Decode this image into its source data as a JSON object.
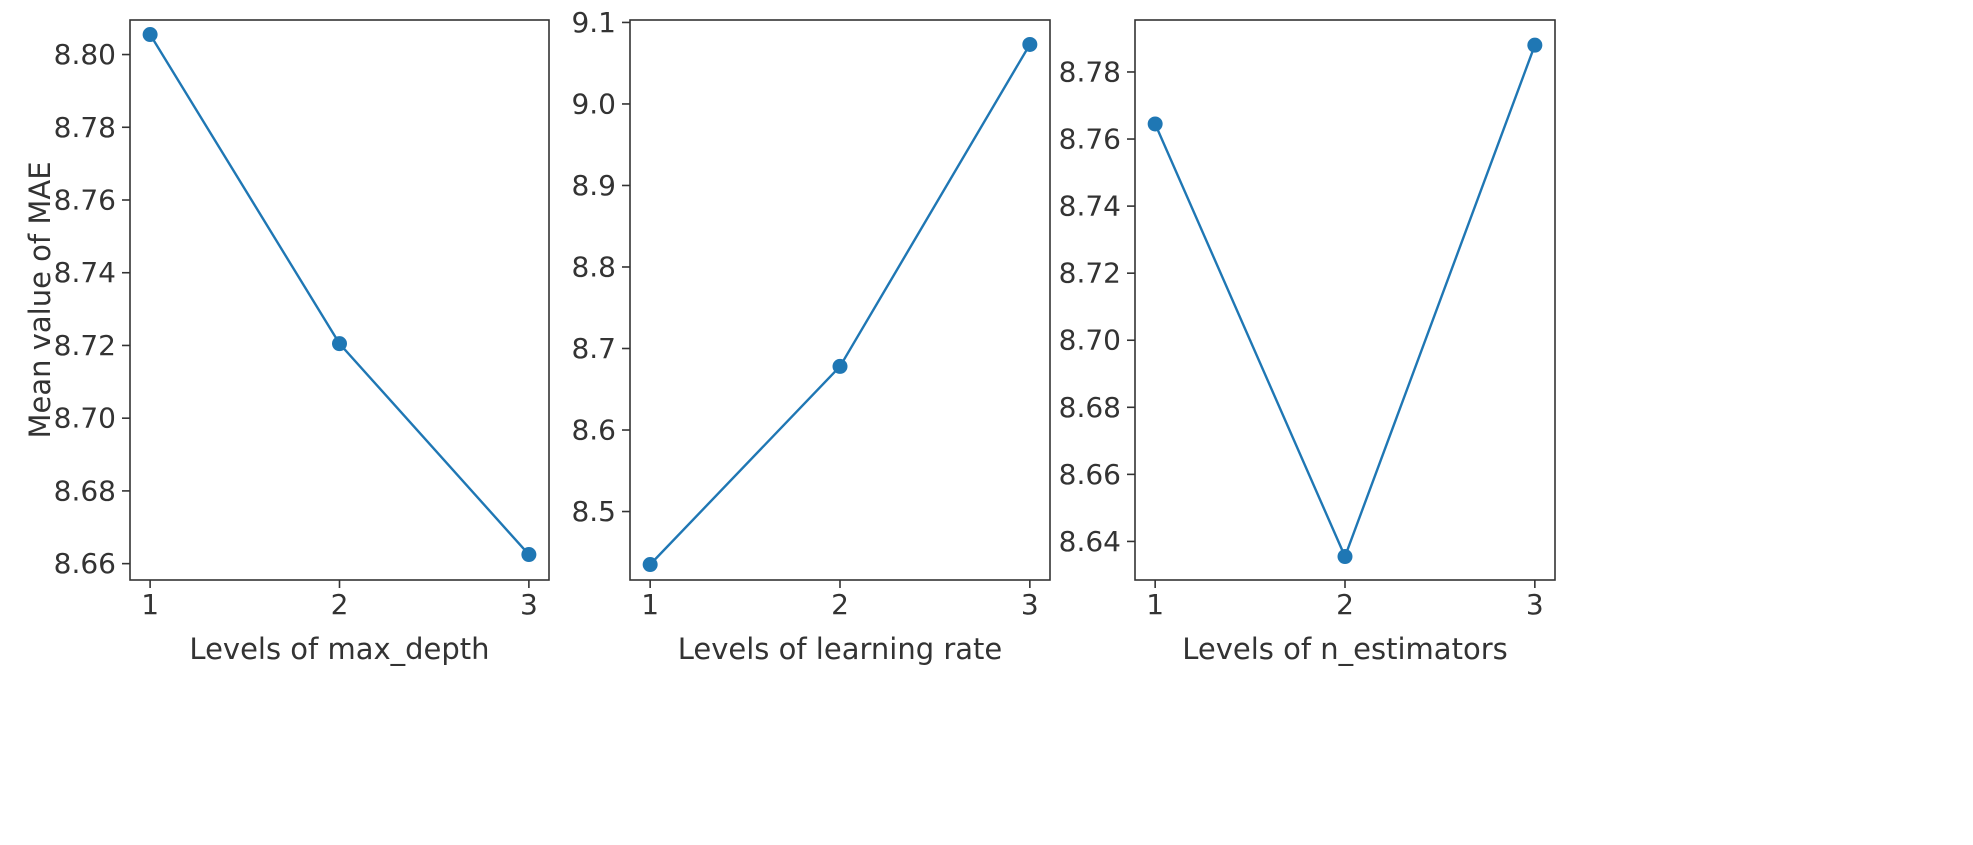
{
  "chart_data": [
    {
      "type": "line",
      "xlabel": "Levels of max_depth",
      "ylabel": "Mean value of MAE",
      "x": [
        1,
        2,
        3
      ],
      "xticks": [
        "1",
        "2",
        "3"
      ],
      "series": [
        {
          "values": [
            8.8055,
            8.7205,
            8.6625
          ]
        }
      ],
      "ylim": [
        8.6555,
        8.8095
      ],
      "yticks": [
        "8.66",
        "8.68",
        "8.70",
        "8.72",
        "8.74",
        "8.76",
        "8.78",
        "8.80"
      ],
      "grid": false,
      "marker": "circle"
    },
    {
      "type": "line",
      "xlabel": "Levels of learning rate",
      "ylabel": "",
      "x": [
        1,
        2,
        3
      ],
      "xticks": [
        "1",
        "2",
        "3"
      ],
      "series": [
        {
          "values": [
            8.435,
            8.678,
            9.073
          ]
        }
      ],
      "ylim": [
        8.416,
        9.103
      ],
      "yticks": [
        "8.5",
        "8.6",
        "8.7",
        "8.8",
        "8.9",
        "9.0",
        "9.1"
      ],
      "grid": false,
      "marker": "circle"
    },
    {
      "type": "line",
      "xlabel": "Levels of n_estimators",
      "ylabel": "",
      "x": [
        1,
        2,
        3
      ],
      "xticks": [
        "1",
        "2",
        "3"
      ],
      "series": [
        {
          "values": [
            8.7645,
            8.6355,
            8.788
          ]
        }
      ],
      "ylim": [
        8.6285,
        8.7955
      ],
      "yticks": [
        "8.64",
        "8.66",
        "8.68",
        "8.70",
        "8.72",
        "8.74",
        "8.76",
        "8.78"
      ],
      "grid": false,
      "marker": "circle"
    }
  ],
  "colors": {
    "series": "#1f77b4",
    "axes": "#333333",
    "background": "#ffffff"
  }
}
